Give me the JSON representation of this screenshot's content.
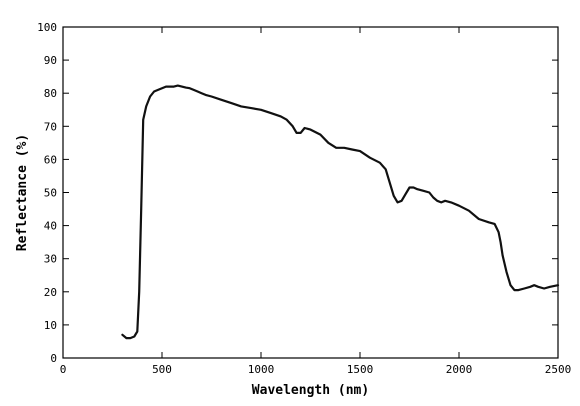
{
  "chart_data": {
    "type": "line",
    "title": "",
    "xlabel": "Wavelength (nm)",
    "ylabel": "Reflectance (%)",
    "xlim": [
      0,
      2500
    ],
    "ylim": [
      0,
      100
    ],
    "xticks": [
      0,
      500,
      1000,
      1500,
      2000,
      2500
    ],
    "yticks": [
      0,
      10,
      20,
      30,
      40,
      50,
      60,
      70,
      80,
      90,
      100
    ],
    "grid": false,
    "series": [
      {
        "x": [
          300,
          320,
          340,
          360,
          375,
          385,
          395,
          405,
          420,
          440,
          460,
          480,
          500,
          520,
          540,
          560,
          580,
          600,
          620,
          640,
          660,
          680,
          700,
          720,
          750,
          800,
          850,
          900,
          950,
          1000,
          1050,
          1100,
          1130,
          1160,
          1180,
          1200,
          1220,
          1250,
          1300,
          1340,
          1380,
          1420,
          1460,
          1500,
          1550,
          1600,
          1630,
          1650,
          1670,
          1690,
          1710,
          1730,
          1750,
          1770,
          1790,
          1820,
          1850,
          1870,
          1890,
          1910,
          1930,
          1960,
          2000,
          2050,
          2100,
          2150,
          2180,
          2200,
          2210,
          2220,
          2240,
          2260,
          2280,
          2300,
          2330,
          2360,
          2380,
          2400,
          2430,
          2460,
          2500
        ],
        "y": [
          7,
          6,
          6,
          6.5,
          8,
          20,
          45,
          72,
          76,
          79,
          80.5,
          81,
          81.5,
          82,
          82,
          82,
          82.3,
          82,
          81.7,
          81.5,
          81,
          80.5,
          80,
          79.5,
          79,
          78,
          77,
          76,
          75.5,
          75,
          74,
          73,
          72,
          70,
          68,
          68,
          69.5,
          69,
          67.5,
          65,
          63.5,
          63.5,
          63,
          62.5,
          60.5,
          59,
          57,
          53,
          49,
          47,
          47.5,
          49.5,
          51.5,
          51.5,
          51,
          50.5,
          50,
          48.5,
          47.5,
          47,
          47.5,
          47,
          46,
          44.5,
          42,
          41,
          40.5,
          38,
          35,
          31,
          26,
          22,
          20.5,
          20.5,
          21,
          21.5,
          22,
          21.5,
          21,
          21.5,
          22
        ]
      }
    ]
  }
}
